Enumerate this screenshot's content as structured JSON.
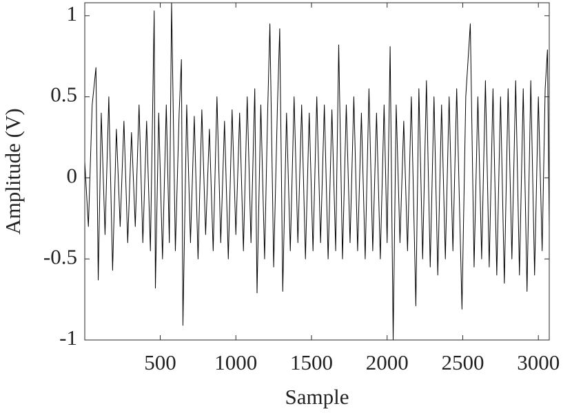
{
  "chart_data": {
    "type": "line",
    "xlabel": "Sample",
    "ylabel": "Amplitude (V)",
    "x": [
      1,
      25,
      50,
      75,
      90,
      110,
      135,
      160,
      185,
      210,
      235,
      260,
      285,
      310,
      335,
      360,
      385,
      410,
      435,
      460,
      468,
      490,
      515,
      540,
      560,
      575,
      600,
      625,
      640,
      650,
      675,
      700,
      725,
      750,
      775,
      800,
      825,
      850,
      875,
      900,
      925,
      950,
      975,
      1000,
      1025,
      1050,
      1075,
      1100,
      1125,
      1140,
      1165,
      1190,
      1210,
      1225,
      1250,
      1275,
      1290,
      1310,
      1335,
      1360,
      1385,
      1410,
      1435,
      1460,
      1485,
      1510,
      1535,
      1560,
      1585,
      1610,
      1635,
      1660,
      1680,
      1705,
      1730,
      1755,
      1780,
      1805,
      1830,
      1855,
      1880,
      1905,
      1930,
      1955,
      1980,
      2000,
      2020,
      2040,
      2060,
      2085,
      2110,
      2135,
      2160,
      2190,
      2210,
      2235,
      2260,
      2285,
      2310,
      2335,
      2360,
      2385,
      2410,
      2435,
      2460,
      2495,
      2520,
      2550,
      2575,
      2600,
      2625,
      2650,
      2675,
      2700,
      2725,
      2750,
      2775,
      2800,
      2825,
      2850,
      2875,
      2900,
      2925,
      2950,
      2975,
      3000,
      3025,
      3045,
      3060,
      3072
    ],
    "series": [
      {
        "color": "#000000",
        "values": [
          0.1,
          -0.3,
          0.45,
          0.68,
          -0.63,
          0.4,
          -0.35,
          0.5,
          -0.57,
          0.3,
          -0.3,
          0.35,
          -0.4,
          0.28,
          -0.3,
          0.45,
          -0.4,
          0.35,
          -0.45,
          1.03,
          -0.68,
          0.4,
          -0.5,
          0.45,
          -0.4,
          1.08,
          -0.45,
          0.4,
          0.73,
          -0.91,
          0.45,
          -0.4,
          0.38,
          -0.5,
          0.42,
          -0.35,
          0.3,
          -0.45,
          0.5,
          -0.4,
          0.35,
          -0.5,
          0.42,
          -0.35,
          0.4,
          -0.45,
          0.5,
          -0.4,
          0.55,
          -0.71,
          0.45,
          -0.5,
          0.4,
          0.95,
          -0.55,
          0.45,
          0.92,
          -0.7,
          0.4,
          -0.45,
          0.5,
          -0.4,
          0.45,
          -0.5,
          0.4,
          -0.45,
          0.5,
          -0.4,
          0.45,
          -0.5,
          0.42,
          -0.45,
          0.82,
          -0.5,
          0.45,
          -0.4,
          0.5,
          -0.45,
          0.4,
          -0.5,
          0.55,
          -0.45,
          0.4,
          -0.5,
          0.45,
          -0.4,
          0.81,
          -1.0,
          0.45,
          -0.4,
          0.35,
          -0.45,
          0.5,
          -0.79,
          0.55,
          -0.5,
          0.6,
          -0.55,
          0.5,
          -0.6,
          0.45,
          -0.5,
          0.5,
          -0.45,
          0.55,
          -0.81,
          0.5,
          0.95,
          -0.55,
          0.5,
          -0.5,
          0.6,
          -0.55,
          0.55,
          -0.6,
          0.5,
          -0.65,
          0.55,
          -0.5,
          0.6,
          -0.6,
          0.55,
          -0.7,
          0.6,
          -0.6,
          0.5,
          -0.45,
          0.55,
          0.79,
          -0.3
        ]
      }
    ],
    "xlim": [
      1,
      3072
    ],
    "ylim": [
      -1,
      1.08
    ],
    "xticks": [
      500,
      1000,
      1500,
      2000,
      2500,
      3000
    ],
    "yticks": [
      -1,
      -0.5,
      0,
      0.5,
      1
    ],
    "grid": false
  }
}
